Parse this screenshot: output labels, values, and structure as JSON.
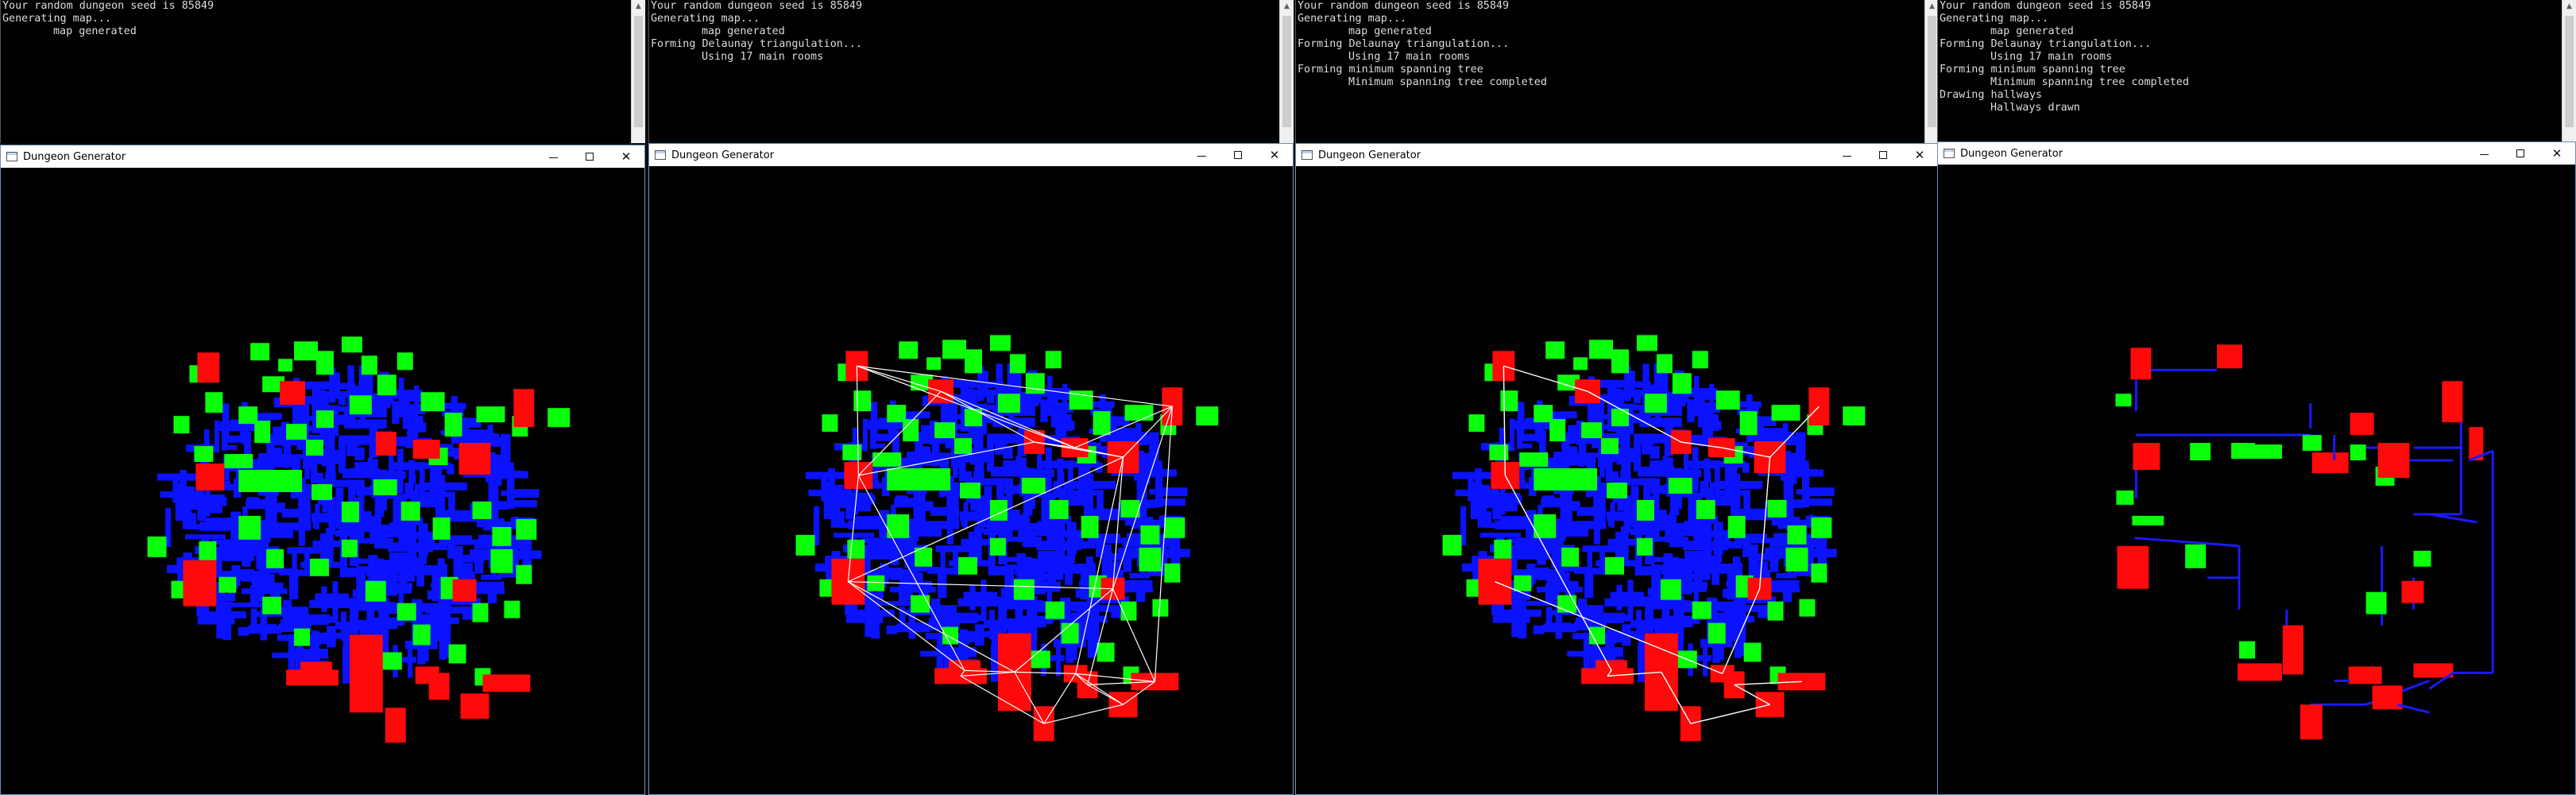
{
  "window_title": "Dungeon Generator",
  "colors": {
    "regular_room": "#0a12ff",
    "side_room": "#0aff0a",
    "main_room": "#ff0a0a",
    "edge": "#ffffff",
    "hallway": "#1a1aff"
  },
  "panels": [
    {
      "stage": "rooms",
      "console_lines": [
        {
          "text": "Your random dungeon seed is 85849",
          "indent": false
        },
        {
          "text": "Generating map...",
          "indent": false
        },
        {
          "text": "map generated",
          "indent": true
        }
      ]
    },
    {
      "stage": "delaunay",
      "console_lines": [
        {
          "text": "Your random dungeon seed is 85849",
          "indent": false
        },
        {
          "text": "Generating map...",
          "indent": false
        },
        {
          "text": "map generated",
          "indent": true
        },
        {
          "text": "Forming Delaunay triangulation...",
          "indent": false
        },
        {
          "text": "Using 17 main rooms",
          "indent": true
        }
      ]
    },
    {
      "stage": "mst",
      "console_lines": [
        {
          "text": "Your random dungeon seed is 85849",
          "indent": false
        },
        {
          "text": "Generating map...",
          "indent": false
        },
        {
          "text": "map generated",
          "indent": true
        },
        {
          "text": "Forming Delaunay triangulation...",
          "indent": false
        },
        {
          "text": "Using 17 main rooms",
          "indent": true
        },
        {
          "text": "Forming minimum spanning tree",
          "indent": false
        },
        {
          "text": "Minimum spanning tree completed",
          "indent": true
        }
      ]
    },
    {
      "stage": "hallways",
      "console_lines": [
        {
          "text": "Your random dungeon seed is 85849",
          "indent": false
        },
        {
          "text": "Generating map...",
          "indent": false
        },
        {
          "text": "map generated",
          "indent": true
        },
        {
          "text": "Forming Delaunay triangulation...",
          "indent": false
        },
        {
          "text": "Using 17 main rooms",
          "indent": true
        },
        {
          "text": "Forming minimum spanning tree",
          "indent": false
        },
        {
          "text": "Minimum spanning tree completed",
          "indent": true
        },
        {
          "text": "Drawing hallways",
          "indent": false
        },
        {
          "text": "Hallways drawn",
          "indent": true
        }
      ]
    }
  ]
}
